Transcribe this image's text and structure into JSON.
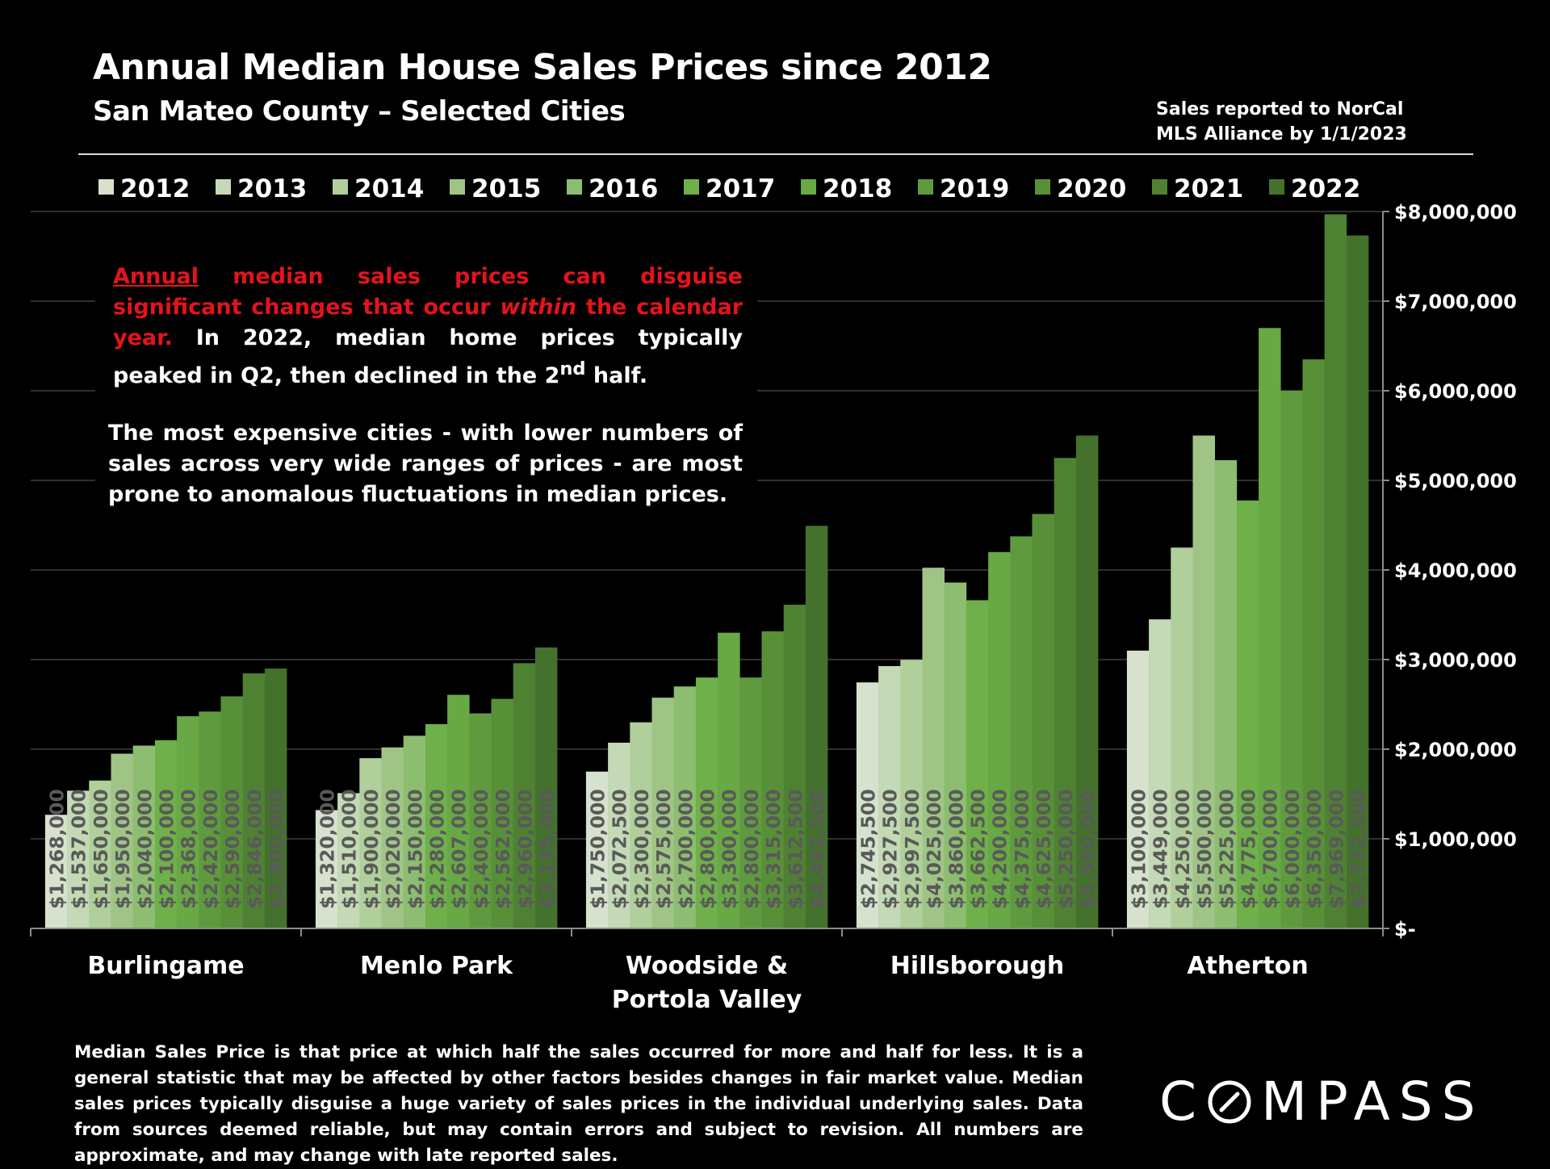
{
  "header": {
    "title": "Annual Median House Sales Prices since 2012",
    "subtitle": "San Mateo County – Selected Cities",
    "source_line1": "Sales reported to NorCal",
    "source_line2": "MLS Alliance by 1/1/2023"
  },
  "callout": {
    "p1_red_underlined": "Annual",
    "p1_red_a": " median sales prices can disguise significant changes that occur ",
    "p1_red_italic": "within",
    "p1_red_b": " the calendar year.",
    "p1_white_a": " In 2022, median home prices typically peaked in Q2, then declined in the 2",
    "p1_sup": "nd",
    "p1_white_b": " half.",
    "p2": "The most expensive cities - with lower numbers of sales across very wide ranges of prices - are most prone to anomalous fluctuations in median prices."
  },
  "footnote": "Median Sales Price is that price at which half the sales occurred for more and half for less. It is a general statistic that may be affected by other factors besides changes in fair market value. Median sales prices typically disguise a huge variety of sales prices in the individual underlying sales. Data from sources deemed reliable, but may contain errors and subject to revision.  All numbers are approximate, and may change with late reported sales.",
  "logo": {
    "text_a": "C",
    "text_b": "MPASS"
  },
  "colors": {
    "series": [
      "#d6e2cd",
      "#c4d9b5",
      "#b0cf9b",
      "#9fc486",
      "#8cbd70",
      "#6fb04a",
      "#68a845",
      "#5f9b3e",
      "#589038",
      "#4f8133",
      "#44722c"
    ],
    "label_text": "#595959",
    "grid": "#404040",
    "axis": "#8c8c8c"
  },
  "chart_data": {
    "type": "bar",
    "title": "Annual Median House Sales Prices since 2012",
    "subtitle": "San Mateo County – Selected Cities",
    "categories": [
      [
        "Burlingame"
      ],
      [
        "Menlo Park"
      ],
      [
        "Woodside &",
        "Portola Valley"
      ],
      [
        "Hillsborough"
      ],
      [
        "Atherton"
      ]
    ],
    "series": [
      {
        "name": "2012",
        "values": [
          1268000,
          1320000,
          1750000,
          2745500,
          3100000
        ]
      },
      {
        "name": "2013",
        "values": [
          1537000,
          1510000,
          2072500,
          2927500,
          3449000
        ]
      },
      {
        "name": "2014",
        "values": [
          1650000,
          1900000,
          2300000,
          2997500,
          4250000
        ]
      },
      {
        "name": "2015",
        "values": [
          1950000,
          2020000,
          2575000,
          4025000,
          5500000
        ]
      },
      {
        "name": "2016",
        "values": [
          2040000,
          2150000,
          2700000,
          3860000,
          5225000
        ]
      },
      {
        "name": "2017",
        "values": [
          2100000,
          2280000,
          2800000,
          3662500,
          4775000
        ]
      },
      {
        "name": "2018",
        "values": [
          2368000,
          2607000,
          3300000,
          4200000,
          6700000
        ]
      },
      {
        "name": "2019",
        "values": [
          2420000,
          2400000,
          2800000,
          4375000,
          6000000
        ]
      },
      {
        "name": "2020",
        "values": [
          2590000,
          2562000,
          3315000,
          4625000,
          6350000
        ]
      },
      {
        "name": "2021",
        "values": [
          2846000,
          2960000,
          3612500,
          5250000,
          7969000
        ]
      },
      {
        "name": "2022",
        "values": [
          2900000,
          3135000,
          4492500,
          5500000,
          7732500
        ]
      }
    ],
    "data_labels": [
      [
        "$1,268,000",
        "$1,537,000",
        "$1,650,000",
        "$1,950,000",
        "$2,040,000",
        "$2,100,000",
        "$2,368,000",
        "$2,420,000",
        "$2,590,000",
        "$2,846,000",
        "$2,900,000"
      ],
      [
        "$1,320,000",
        "$1,510,000",
        "$1,900,000",
        "$2,020,000",
        "$2,150,000",
        "$2,280,000",
        "$2,607,000",
        "$2,400,000",
        "$2,562,000",
        "$2,960,000",
        "$3,135,000"
      ],
      [
        "$1,750,000",
        "$2,072,500",
        "$2,300,000",
        "$2,575,000",
        "$2,700,000",
        "$2,800,000",
        "$3,300,000",
        "$2,800,000",
        "$3,315,000",
        "$3,612,500",
        "$4,492,500"
      ],
      [
        "$2,745,500",
        "$2,927,500",
        "$2,997,500",
        "$4,025,000",
        "$3,860,000",
        "$3,662,500",
        "$4,200,000",
        "$4,375,000",
        "$4,625,000",
        "$5,250,000",
        "$5,500,000"
      ],
      [
        "$3,100,000",
        "$3,449,000",
        "$4,250,000",
        "$5,500,000",
        "$5,225,000",
        "$4,775,000",
        "$6,700,000",
        "$6,000,000",
        "$6,350,000",
        "$7,969,000",
        "$7,732,500"
      ]
    ],
    "ylim": [
      0,
      8000000
    ],
    "yticks": [
      0,
      1000000,
      2000000,
      3000000,
      4000000,
      5000000,
      6000000,
      7000000,
      8000000
    ],
    "ytick_labels": [
      "$-",
      "$1,000,000",
      "$2,000,000",
      "$3,000,000",
      "$4,000,000",
      "$5,000,000",
      "$6,000,000",
      "$7,000,000",
      "$8,000,000"
    ],
    "y_axis_side": "right",
    "legend_position": "top",
    "grid": true
  }
}
